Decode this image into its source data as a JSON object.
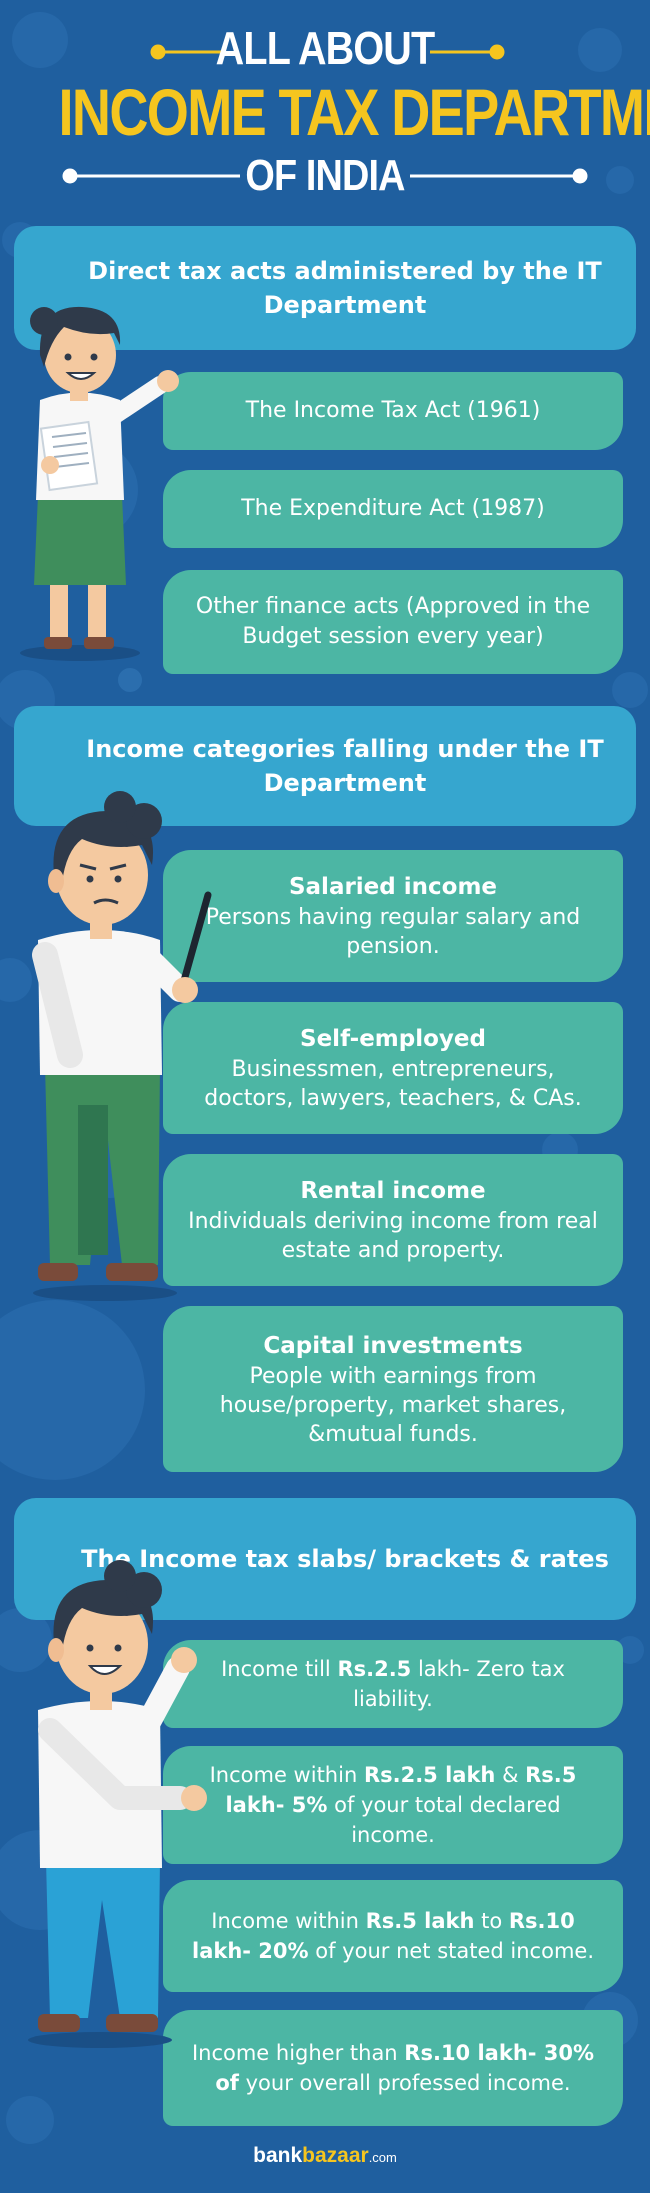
{
  "header": {
    "line1": "ALL ABOUT",
    "line2": "INCOME TAX DEPARTMENT",
    "line3": "OF INDIA"
  },
  "sections": [
    {
      "heading": "Direct tax acts administered by the IT Department",
      "items": [
        {
          "text": "The Income Tax Act (1961)"
        },
        {
          "text": "The Expenditure Act (1987)"
        },
        {
          "text": "Other finance acts (Approved in the Budget session every year)"
        }
      ]
    },
    {
      "heading": "Income categories falling under the IT Department",
      "items": [
        {
          "title": "Salaried income",
          "text": "Persons having regular salary and pension."
        },
        {
          "title": "Self-employed",
          "text": "Businessmen, entrepreneurs, doctors, lawyers, teachers, & CAs."
        },
        {
          "title": "Rental income",
          "text": "Individuals deriving income from real estate and property."
        },
        {
          "title": "Capital investments",
          "text": "People with earnings from house/property, market shares, &mutual funds."
        }
      ]
    },
    {
      "heading": "The Income tax slabs/ brackets & rates",
      "items": [
        {
          "p1": "Income till ",
          "b1": "Rs.2.5",
          "p2": " lakh- Zero tax liability.",
          "b2": "",
          "p3": ""
        },
        {
          "p1": "Income within ",
          "b1": "Rs.2.5 lakh",
          "p2": " & ",
          "b2": "Rs.5 lakh- 5%",
          "p3": " of your total declared income."
        },
        {
          "p1": "Income within ",
          "b1": "Rs.5 lakh",
          "p2": " to ",
          "b2": "Rs.10 lakh- 20%",
          "p3": " of your net stated income."
        },
        {
          "p1": "Income higher than ",
          "b1": "Rs.10 lakh- 30% of",
          "p2": " your overall professed income.",
          "b2": "",
          "p3": ""
        }
      ]
    }
  ],
  "footer": {
    "logo_part1": "bank",
    "logo_part2": "bazaar",
    "logo_suffix": ".com"
  },
  "colors": {
    "background": "#1f5f9f",
    "section_header": "#36a6cf",
    "card": "#4cb6a4",
    "title_accent": "#f5c51f"
  }
}
